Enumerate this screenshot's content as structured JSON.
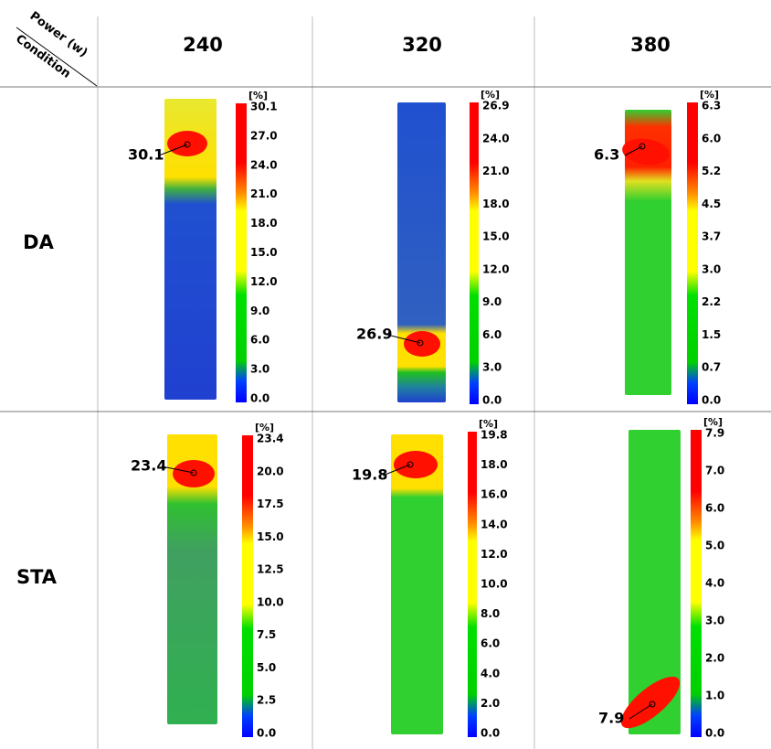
{
  "header": {
    "corner_top": "Power (w)",
    "corner_bottom": "Condition",
    "columns": [
      "240",
      "320",
      "380"
    ]
  },
  "rows": [
    {
      "label": "DA",
      "cells": [
        {
          "unit": "[%]",
          "peak": "30.1",
          "ticks": [
            "30.1",
            "27.0",
            "24.0",
            "21.0",
            "18.0",
            "15.0",
            "12.0",
            "9.0",
            "6.0",
            "3.0",
            "0.0"
          ]
        },
        {
          "unit": "[%]",
          "peak": "26.9",
          "ticks": [
            "26.9",
            "24.0",
            "21.0",
            "18.0",
            "15.0",
            "12.0",
            "9.0",
            "6.0",
            "3.0",
            "0.0"
          ]
        },
        {
          "unit": "[%]",
          "peak": "6.3",
          "ticks": [
            "6.3",
            "6.0",
            "5.2",
            "4.5",
            "3.7",
            "3.0",
            "2.2",
            "1.5",
            "0.7",
            "0.0"
          ]
        }
      ]
    },
    {
      "label": "STA",
      "cells": [
        {
          "unit": "[%]",
          "peak": "23.4",
          "ticks": [
            "23.4",
            "20.0",
            "17.5",
            "15.0",
            "12.5",
            "10.0",
            "7.5",
            "5.0",
            "2.5",
            "0.0"
          ]
        },
        {
          "unit": "[%]",
          "peak": "19.8",
          "ticks": [
            "19.8",
            "18.0",
            "16.0",
            "14.0",
            "12.0",
            "10.0",
            "8.0",
            "6.0",
            "4.0",
            "2.0",
            "0.0"
          ]
        },
        {
          "unit": "[%]",
          "peak": "7.9",
          "ticks": [
            "7.9",
            "7.0",
            "6.0",
            "5.0",
            "4.0",
            "3.0",
            "2.0",
            "1.0",
            "0.0"
          ]
        }
      ]
    }
  ]
}
